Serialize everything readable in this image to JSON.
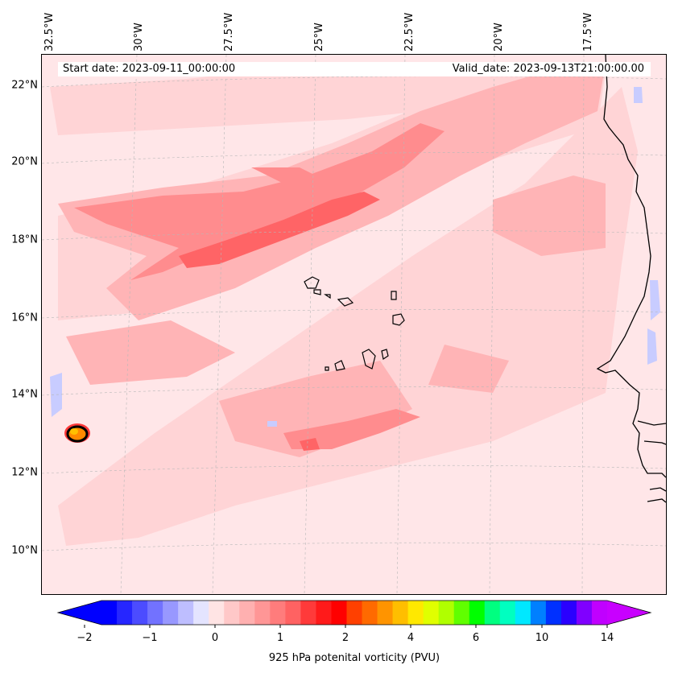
{
  "header": {
    "start_date": "Start date: 2023-09-11_00:00:00",
    "valid_date": "Valid_date: 2023-09-13T21:00:00.00"
  },
  "axes": {
    "lon_labels": [
      "32.5°W",
      "30°W",
      "27.5°W",
      "25°W",
      "22.5°W",
      "20°W",
      "17.5°W"
    ],
    "lat_labels": [
      "22°N",
      "20°N",
      "18°N",
      "16°N",
      "14°N",
      "12°N",
      "10°N"
    ]
  },
  "colorbar": {
    "title": "925 hPa potenital vorticity (PVU)",
    "tick_labels": [
      "−2",
      "−1",
      "0",
      "1",
      "2",
      "4",
      "6",
      "10",
      "14"
    ],
    "colors": [
      "#0000ff",
      "#2626ff",
      "#4c4cff",
      "#7272ff",
      "#9898ff",
      "#bebeff",
      "#e4e4ff",
      "#ffe4e4",
      "#ffc8c8",
      "#ffb0b0",
      "#ff9696",
      "#ff7c7c",
      "#ff6262",
      "#ff3a3a",
      "#ff1a1a",
      "#ff0000",
      "#ff4000",
      "#ff6a00",
      "#ff9400",
      "#ffbe00",
      "#ffe800",
      "#e0ff00",
      "#b0ff00",
      "#60ff00",
      "#00ff00",
      "#00ff80",
      "#00ffc0",
      "#00e8ff",
      "#0080ff",
      "#0030ff",
      "#2a00ff",
      "#8000ff",
      "#c000ff"
    ],
    "under_color": "#0000ff",
    "over_color": "#c800ff"
  },
  "map": {
    "background_color": "#ffe6e8",
    "field_colors": {
      "light": "#ffd4d6",
      "medium": "#ffb4b6",
      "strong": "#ff8c8e",
      "max": "#ff6466",
      "negative_light": "#eef0ff",
      "negative": "#c8ccff",
      "vortex_core": "#ff8a00"
    }
  }
}
